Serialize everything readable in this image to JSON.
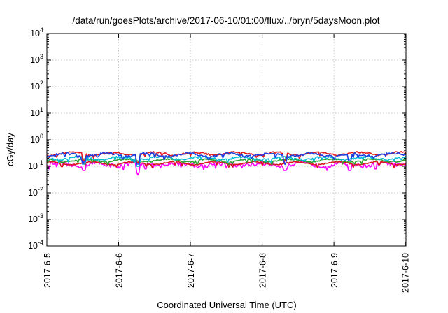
{
  "chart_data": {
    "type": "line",
    "title": "/data/run/goesPlots/archive/2017-06-10/01:00/flux/../bryn/5daysMoon.plot",
    "xlabel": "Coordinated Universal Time (UTC)",
    "ylabel": "cGy/day",
    "yscale": "log",
    "ylim": [
      0.0001,
      10000
    ],
    "yticks": [
      {
        "base": "10",
        "exp": "4"
      },
      {
        "base": "10",
        "exp": "3"
      },
      {
        "base": "10",
        "exp": "2"
      },
      {
        "base": "10",
        "exp": "1"
      },
      {
        "base": "10",
        "exp": "0"
      },
      {
        "base": "10",
        "exp": "-1"
      },
      {
        "base": "10",
        "exp": "-2"
      },
      {
        "base": "10",
        "exp": "-3"
      },
      {
        "base": "10",
        "exp": "-4"
      }
    ],
    "xlim": [
      "2017-06-05 00:00",
      "2017-06-10 00:05"
    ],
    "xticks": [
      "2017-6-5",
      "2017-6-6",
      "2017-6-7",
      "2017-6-8",
      "2017-6-9",
      "2017-6-10"
    ],
    "grid": true,
    "legend": "none",
    "series": [
      {
        "color": "#ff00ff",
        "base": 0.115,
        "amp": 0.35,
        "dips": [
          [
            0.52,
            0.07
          ],
          [
            1.27,
            0.06
          ],
          [
            1.38,
            0.08
          ],
          [
            3.32,
            0.07
          ],
          [
            4.22,
            0.07
          ],
          [
            4.58,
            0.08
          ]
        ]
      },
      {
        "color": "#d7191c",
        "base": 0.13,
        "amp": 0.08,
        "dips": []
      },
      {
        "color": "#2ca02c",
        "base": 0.165,
        "amp": 0.12,
        "dips": []
      },
      {
        "color": "#00bcd4",
        "base": 0.2,
        "amp": 0.18,
        "dips": [
          [
            1.27,
            0.1
          ],
          [
            0.52,
            0.12
          ]
        ]
      },
      {
        "color": "#e41a1c",
        "base": 0.3,
        "amp": 0.15,
        "dips": [
          [
            0.52,
            0.17
          ],
          [
            1.27,
            0.14
          ],
          [
            3.32,
            0.17
          ]
        ]
      },
      {
        "color": "#1f3fe0",
        "base": 0.27,
        "amp": 0.2,
        "dips": [
          [
            0.52,
            0.15
          ],
          [
            1.27,
            0.12
          ],
          [
            3.32,
            0.15
          ],
          [
            4.22,
            0.16
          ]
        ]
      }
    ]
  }
}
